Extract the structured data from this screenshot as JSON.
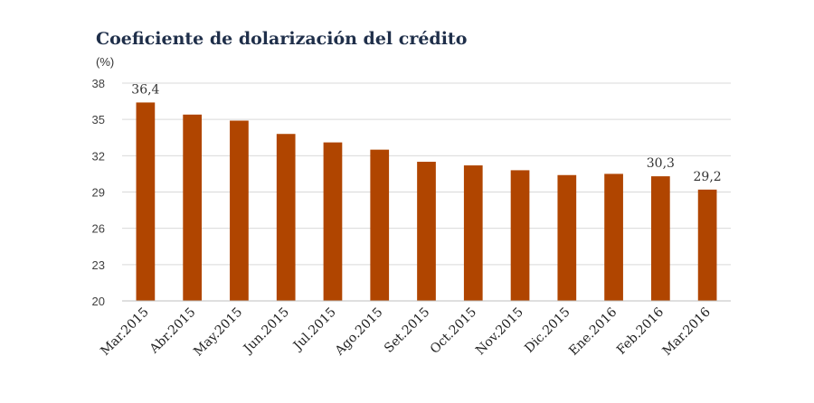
{
  "chart_data": {
    "type": "bar",
    "title": "Coeficiente de dolarización del crédito",
    "unit_label": "(%)",
    "categories": [
      "Mar.2015",
      "Abr.2015",
      "May.2015",
      "Jun.2015",
      "Jul.2015",
      "Ago.2015",
      "Set.2015",
      "Oct.2015",
      "Nov.2015",
      "Dic.2015",
      "Ene.2016",
      "Feb.2016",
      "Mar.2016"
    ],
    "values": [
      36.4,
      35.4,
      34.9,
      33.8,
      33.1,
      32.5,
      31.5,
      31.2,
      30.8,
      30.4,
      30.5,
      30.3,
      29.2
    ],
    "data_labels": [
      {
        "index": 0,
        "text": "36,4"
      },
      {
        "index": 11,
        "text": "30,3"
      },
      {
        "index": 12,
        "text": "29,2"
      }
    ],
    "yticks": [
      "20",
      "23",
      "26",
      "29",
      "32",
      "35",
      "38"
    ],
    "ylim": [
      20,
      38
    ],
    "bar_color": "#b04500",
    "grid": true,
    "legend": "none"
  }
}
